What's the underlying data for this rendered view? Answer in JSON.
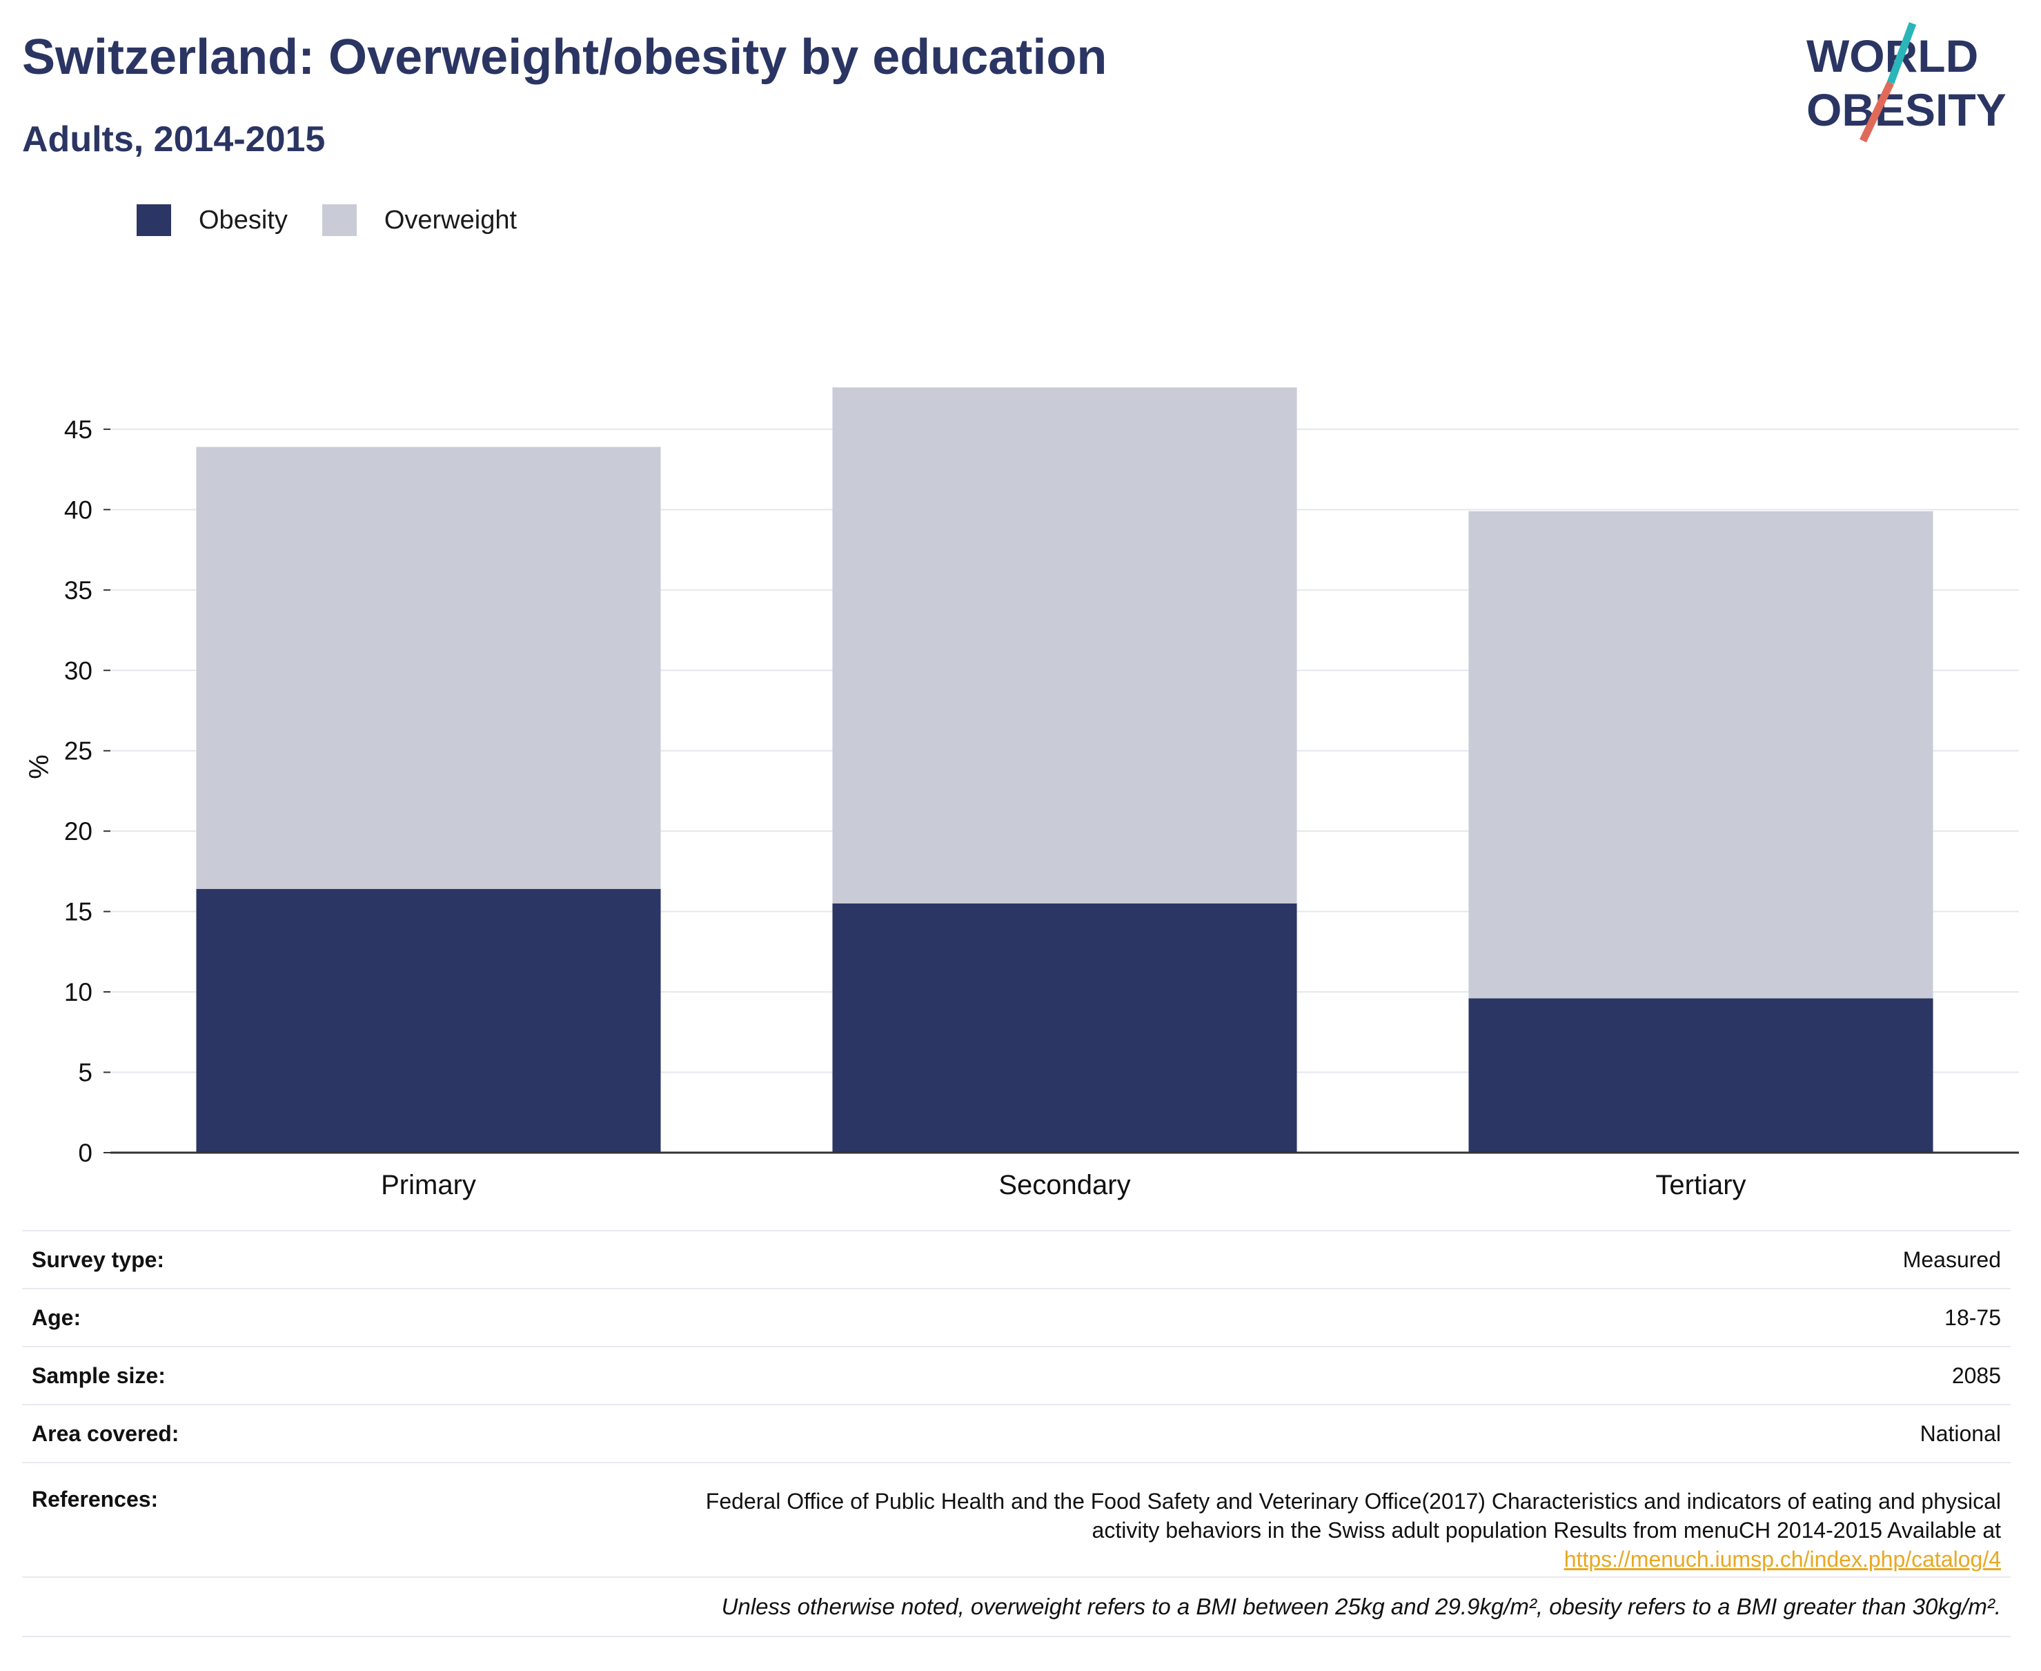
{
  "header": {
    "title": "Switzerland: Overweight/obesity by education",
    "subtitle": "Adults, 2014-2015"
  },
  "logo": {
    "line1": "WORLD",
    "line2": "OBESITY",
    "icon": "world-obesity-logo"
  },
  "colors": {
    "obesity": "#2b3664",
    "overweight": "#c9cbd7",
    "brand_teal": "#2ab5b9",
    "brand_coral": "#e06a5a",
    "link": "#e8a820"
  },
  "legend": [
    {
      "label": "Obesity",
      "color": "#2b3664"
    },
    {
      "label": "Overweight",
      "color": "#c9cbd7"
    }
  ],
  "chart_data": {
    "type": "bar",
    "stacked": true,
    "categories": [
      "Primary",
      "Secondary",
      "Tertiary"
    ],
    "series": [
      {
        "name": "Obesity",
        "values": [
          16.4,
          15.5,
          9.6
        ]
      },
      {
        "name": "Overweight",
        "values": [
          27.5,
          32.1,
          30.3
        ]
      }
    ],
    "ylabel": "%",
    "ylim": [
      0,
      48
    ],
    "yticks": [
      0,
      5,
      10,
      15,
      20,
      25,
      30,
      35,
      40,
      45
    ],
    "grid": true,
    "legend_position": "top-left"
  },
  "meta": {
    "rows": [
      {
        "label": "Survey type:",
        "value": "Measured"
      },
      {
        "label": "Age:",
        "value": "18-75"
      },
      {
        "label": "Sample size:",
        "value": "2085"
      },
      {
        "label": "Area covered:",
        "value": "National"
      }
    ],
    "references_label": "References:",
    "references_line1": "Federal Office of Public Health and the Food Safety and Veterinary Office(2017) Characteristics and indicators of eating and physical",
    "references_line2": "activity behaviors in the Swiss adult population Results from menuCH 2014-2015 Available at",
    "references_link": "https://menuch.iumsp.ch/index.php/catalog/4",
    "note": "Unless otherwise noted, overweight refers to a BMI between 25kg and 29.9kg/m², obesity refers to a BMI greater than 30kg/m²."
  }
}
